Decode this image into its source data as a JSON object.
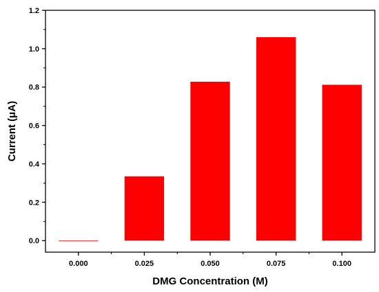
{
  "chart_data": {
    "type": "bar",
    "categories": [
      "0.000",
      "0.025",
      "0.050",
      "0.075",
      "0.100"
    ],
    "values": [
      0.0,
      0.335,
      0.828,
      1.06,
      0.812
    ],
    "title": "",
    "xlabel": "DMG Concentration (M)",
    "ylabel": "Current (μA)",
    "ylim": [
      -0.06,
      1.2
    ],
    "yticks": [
      "0.0",
      "0.2",
      "0.4",
      "0.6",
      "0.8",
      "1.0",
      "1.2"
    ],
    "grid": false,
    "bar_color": "#ff0000",
    "axis_color": "#000000"
  }
}
